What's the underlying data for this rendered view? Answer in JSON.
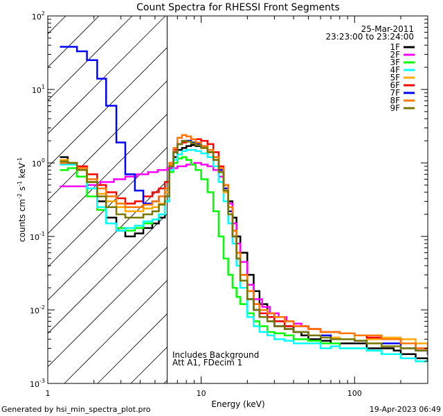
{
  "chart_data": {
    "type": "line",
    "title": "Count Spectra for RHESSI Front Segments",
    "xlabel": "Energy (keV)",
    "ylabel": "counts cm⁻² s⁻¹ keV⁻¹",
    "ylabel_parts": {
      "base": "counts cm",
      "sup1": "-2",
      "mid1": " s",
      "sup2": "-1",
      "mid2": " keV",
      "sup3": "-1"
    },
    "x_scale": "log",
    "y_scale": "log",
    "xlim": [
      1,
      300
    ],
    "ylim": [
      0.001,
      100
    ],
    "x_tick_labels": [
      {
        "v": 1,
        "t": "1"
      },
      {
        "v": 10,
        "t": "10"
      },
      {
        "v": 100,
        "t": "100"
      }
    ],
    "y_tick_labels": [
      {
        "v": 0.001,
        "base": "10",
        "exp": "-3"
      },
      {
        "v": 0.01,
        "base": "10",
        "exp": "-2"
      },
      {
        "v": 0.1,
        "base": "10",
        "exp": "-1"
      },
      {
        "v": 1,
        "base": "10",
        "exp": "0"
      },
      {
        "v": 10,
        "base": "10",
        "exp": "1"
      },
      {
        "v": 100,
        "base": "10",
        "exp": "2"
      }
    ],
    "date": "25-Mar-2011",
    "time_range": "23:23:00 to 23:24:00",
    "attenuator_boundary_keV": 6,
    "annotation_lines": [
      "Includes Background",
      "Att A1, FDecim 1"
    ],
    "legend_position": "top-right",
    "series": [
      {
        "name": "1F",
        "color": "#000000",
        "x": [
          1.2,
          1.35,
          1.55,
          1.8,
          2.1,
          2.4,
          2.8,
          3.2,
          3.7,
          4.2,
          4.8,
          5.3,
          5.8,
          6.2,
          6.6,
          7.0,
          7.5,
          8.0,
          8.6,
          9.2,
          10,
          11,
          12,
          13,
          14,
          15,
          16,
          17,
          18,
          20,
          22,
          24,
          27,
          30,
          35,
          40,
          45,
          50,
          60,
          70,
          80,
          100,
          120,
          150,
          180,
          200,
          250,
          300
        ],
        "y": [
          1.2,
          1.0,
          0.8,
          0.55,
          0.3,
          0.18,
          0.12,
          0.1,
          0.11,
          0.13,
          0.15,
          0.18,
          0.3,
          0.85,
          1.2,
          1.5,
          1.6,
          1.7,
          1.75,
          1.7,
          1.6,
          1.4,
          1.1,
          0.8,
          0.5,
          0.3,
          0.18,
          0.1,
          0.06,
          0.03,
          0.018,
          0.012,
          0.009,
          0.007,
          0.006,
          0.005,
          0.0045,
          0.004,
          0.0038,
          0.0035,
          0.0035,
          0.0035,
          0.003,
          0.003,
          0.0028,
          0.0025,
          0.0022,
          0.002
        ]
      },
      {
        "name": "2F",
        "color": "#ff00ff",
        "x": [
          1.2,
          1.5,
          1.8,
          2.2,
          2.7,
          3.2,
          3.8,
          4.5,
          5.2,
          6,
          7,
          8,
          9,
          10,
          11,
          12,
          13,
          14,
          15,
          16,
          17,
          18,
          20,
          22,
          25,
          28,
          32,
          36,
          40,
          45,
          50,
          60,
          70,
          80,
          100,
          120,
          150,
          200,
          250,
          300
        ],
        "y": [
          0.48,
          0.48,
          0.5,
          0.55,
          0.6,
          0.65,
          0.7,
          0.75,
          0.8,
          0.85,
          0.9,
          0.95,
          1.0,
          0.95,
          0.9,
          0.8,
          0.65,
          0.45,
          0.28,
          0.15,
          0.08,
          0.045,
          0.022,
          0.014,
          0.011,
          0.009,
          0.008,
          0.007,
          0.0065,
          0.006,
          0.0055,
          0.005,
          0.005,
          0.0048,
          0.0045,
          0.0042,
          0.004,
          0.0035,
          0.003,
          0.0025
        ]
      },
      {
        "name": "3F",
        "color": "#00ff00",
        "x": [
          1.2,
          1.35,
          1.55,
          1.8,
          2.1,
          2.4,
          2.8,
          3.2,
          3.7,
          4.2,
          4.8,
          5.3,
          5.8,
          6.2,
          6.6,
          7.0,
          7.5,
          8.0,
          8.6,
          9.2,
          10,
          11,
          12,
          13,
          14,
          15,
          16,
          17,
          18,
          20,
          22,
          24,
          27,
          30,
          35,
          40,
          50,
          60,
          70,
          80,
          100,
          120,
          150,
          200,
          250,
          300
        ],
        "y": [
          0.8,
          0.85,
          0.65,
          0.35,
          0.23,
          0.15,
          0.13,
          0.12,
          0.13,
          0.15,
          0.17,
          0.2,
          0.3,
          0.75,
          1.0,
          1.15,
          1.2,
          1.1,
          0.95,
          0.8,
          0.6,
          0.4,
          0.22,
          0.1,
          0.05,
          0.03,
          0.02,
          0.015,
          0.012,
          0.009,
          0.007,
          0.006,
          0.005,
          0.0048,
          0.0045,
          0.004,
          0.0038,
          0.0035,
          0.0035,
          0.003,
          0.003,
          0.0028,
          0.0025,
          0.0022,
          0.002,
          0.002
        ]
      },
      {
        "name": "4F",
        "color": "#00ffff",
        "x": [
          1.2,
          1.35,
          1.55,
          1.8,
          2.1,
          2.4,
          2.8,
          3.2,
          3.7,
          4.2,
          4.8,
          5.3,
          5.8,
          6.2,
          6.6,
          7.0,
          7.5,
          8.0,
          8.6,
          9.2,
          10,
          11,
          12,
          13,
          14,
          15,
          16,
          17,
          18,
          20,
          22,
          24,
          27,
          30,
          35,
          40,
          50,
          60,
          70,
          80,
          100,
          120,
          150,
          200,
          250,
          300
        ],
        "y": [
          0.95,
          0.95,
          0.8,
          0.45,
          0.25,
          0.15,
          0.12,
          0.13,
          0.14,
          0.16,
          0.17,
          0.2,
          0.3,
          0.8,
          1.1,
          1.3,
          1.45,
          1.5,
          1.5,
          1.45,
          1.35,
          1.2,
          0.9,
          0.55,
          0.3,
          0.15,
          0.08,
          0.04,
          0.02,
          0.008,
          0.006,
          0.005,
          0.0045,
          0.004,
          0.0038,
          0.0035,
          0.0035,
          0.003,
          0.0032,
          0.003,
          0.003,
          0.0028,
          0.0025,
          0.0022,
          0.002,
          0.002
        ]
      },
      {
        "name": "5F",
        "color": "#ffaa00",
        "x": [
          1.2,
          1.35,
          1.55,
          1.8,
          2.1,
          2.4,
          2.8,
          3.2,
          3.7,
          4.2,
          4.8,
          5.3,
          5.8,
          6.2,
          6.6,
          7.0,
          7.5,
          8.0,
          8.6,
          9.2,
          10,
          11,
          12,
          13,
          14,
          15,
          16,
          17,
          18,
          20,
          22,
          24,
          27,
          30,
          35,
          40,
          50,
          60,
          70,
          80,
          100,
          120,
          150,
          200,
          250,
          300
        ],
        "y": [
          1.1,
          1.0,
          0.8,
          0.55,
          0.38,
          0.3,
          0.25,
          0.22,
          0.22,
          0.24,
          0.25,
          0.28,
          0.4,
          0.95,
          1.4,
          1.8,
          2.0,
          2.0,
          1.9,
          1.8,
          1.6,
          1.4,
          1.1,
          0.75,
          0.4,
          0.2,
          0.1,
          0.05,
          0.025,
          0.014,
          0.01,
          0.008,
          0.007,
          0.006,
          0.0055,
          0.005,
          0.0045,
          0.0045,
          0.0042,
          0.004,
          0.0045,
          0.004,
          0.0042,
          0.004,
          0.0035,
          0.003
        ]
      },
      {
        "name": "6F",
        "color": "#ff0000",
        "x": [
          1.2,
          1.35,
          1.55,
          1.8,
          2.1,
          2.4,
          2.8,
          3.2,
          3.7,
          4.2,
          4.8,
          5.3,
          5.8,
          6.2,
          6.6,
          7.0,
          7.5,
          8.0,
          8.6,
          9.2,
          10,
          11,
          12,
          13,
          14,
          15,
          16,
          17,
          18,
          20,
          22,
          24,
          27,
          30,
          35,
          40,
          50,
          60,
          70,
          80,
          100,
          120,
          150,
          200,
          250,
          300
        ],
        "y": [
          1.0,
          1.0,
          0.9,
          0.7,
          0.5,
          0.4,
          0.33,
          0.28,
          0.3,
          0.35,
          0.4,
          0.45,
          0.55,
          1.0,
          1.5,
          1.8,
          1.9,
          2.0,
          2.1,
          2.1,
          2.0,
          1.8,
          1.4,
          0.9,
          0.5,
          0.25,
          0.12,
          0.06,
          0.03,
          0.018,
          0.012,
          0.009,
          0.008,
          0.007,
          0.006,
          0.006,
          0.0055,
          0.005,
          0.005,
          0.0048,
          0.0045,
          0.0042,
          0.004,
          0.0035,
          0.003,
          0.0028
        ]
      },
      {
        "name": "7F",
        "color": "#0000ff",
        "x": [
          1.2,
          1.35,
          1.55,
          1.8,
          2.1,
          2.4,
          2.8,
          3.2,
          3.7,
          4.2,
          4.8,
          5.3,
          5.8,
          6.2,
          6.6,
          7.0,
          7.5,
          8.0,
          8.6,
          9.2,
          10,
          11,
          12,
          13,
          14,
          15,
          16,
          17,
          18,
          20,
          22,
          24,
          27,
          30,
          35,
          40,
          50,
          60,
          70,
          80,
          100,
          120,
          150,
          200,
          250,
          300
        ],
        "y": [
          38,
          38,
          33,
          25,
          14,
          6,
          1.9,
          0.7,
          0.42,
          0.28,
          0.3,
          0.35,
          0.45,
          0.9,
          1.4,
          1.8,
          2.0,
          2.0,
          1.9,
          1.8,
          1.7,
          1.5,
          1.2,
          0.8,
          0.45,
          0.22,
          0.1,
          0.05,
          0.025,
          0.014,
          0.01,
          0.008,
          0.007,
          0.006,
          0.0055,
          0.005,
          0.0045,
          0.0045,
          0.004,
          0.004,
          0.0038,
          0.0035,
          0.0035,
          0.003,
          0.0028,
          0.0025
        ]
      },
      {
        "name": "8F",
        "color": "#ff7700",
        "x": [
          1.2,
          1.35,
          1.55,
          1.8,
          2.1,
          2.4,
          2.8,
          3.2,
          3.7,
          4.2,
          4.8,
          5.3,
          5.8,
          6.2,
          6.6,
          7.0,
          7.5,
          8.0,
          8.6,
          9.2,
          10,
          11,
          12,
          13,
          14,
          15,
          16,
          17,
          18,
          20,
          22,
          24,
          27,
          30,
          35,
          40,
          50,
          60,
          70,
          80,
          100,
          120,
          150,
          200,
          250,
          300
        ],
        "y": [
          1.0,
          1.0,
          0.85,
          0.6,
          0.45,
          0.35,
          0.28,
          0.25,
          0.25,
          0.27,
          0.3,
          0.35,
          0.45,
          1.0,
          1.6,
          2.2,
          2.4,
          2.3,
          2.1,
          1.9,
          1.7,
          1.5,
          1.2,
          0.85,
          0.5,
          0.25,
          0.12,
          0.06,
          0.03,
          0.018,
          0.012,
          0.01,
          0.009,
          0.008,
          0.007,
          0.006,
          0.0055,
          0.005,
          0.005,
          0.0048,
          0.0045,
          0.0045,
          0.004,
          0.0035,
          0.003,
          0.0028
        ]
      },
      {
        "name": "9F",
        "color": "#777700",
        "x": [
          1.2,
          1.35,
          1.55,
          1.8,
          2.1,
          2.4,
          2.8,
          3.2,
          3.7,
          4.2,
          4.8,
          5.3,
          5.8,
          6.2,
          6.6,
          7.0,
          7.5,
          8.0,
          8.6,
          9.2,
          10,
          11,
          12,
          13,
          14,
          15,
          16,
          17,
          18,
          20,
          22,
          24,
          27,
          30,
          35,
          40,
          50,
          60,
          70,
          80,
          100,
          120,
          150,
          200,
          250,
          300
        ],
        "y": [
          1.05,
          1.0,
          0.8,
          0.55,
          0.35,
          0.25,
          0.2,
          0.18,
          0.18,
          0.2,
          0.22,
          0.27,
          0.35,
          0.9,
          1.4,
          1.8,
          2.0,
          1.95,
          1.85,
          1.75,
          1.6,
          1.4,
          1.1,
          0.75,
          0.42,
          0.2,
          0.1,
          0.05,
          0.025,
          0.014,
          0.01,
          0.008,
          0.007,
          0.006,
          0.0055,
          0.005,
          0.0045,
          0.0042,
          0.004,
          0.004,
          0.0038,
          0.0035,
          0.0032,
          0.003,
          0.0028,
          0.0025
        ]
      }
    ]
  },
  "footer": {
    "generated_by": "Generated by hsi_min_spectra_plot.pro",
    "timestamp": "19-Apr-2023 06:49"
  }
}
